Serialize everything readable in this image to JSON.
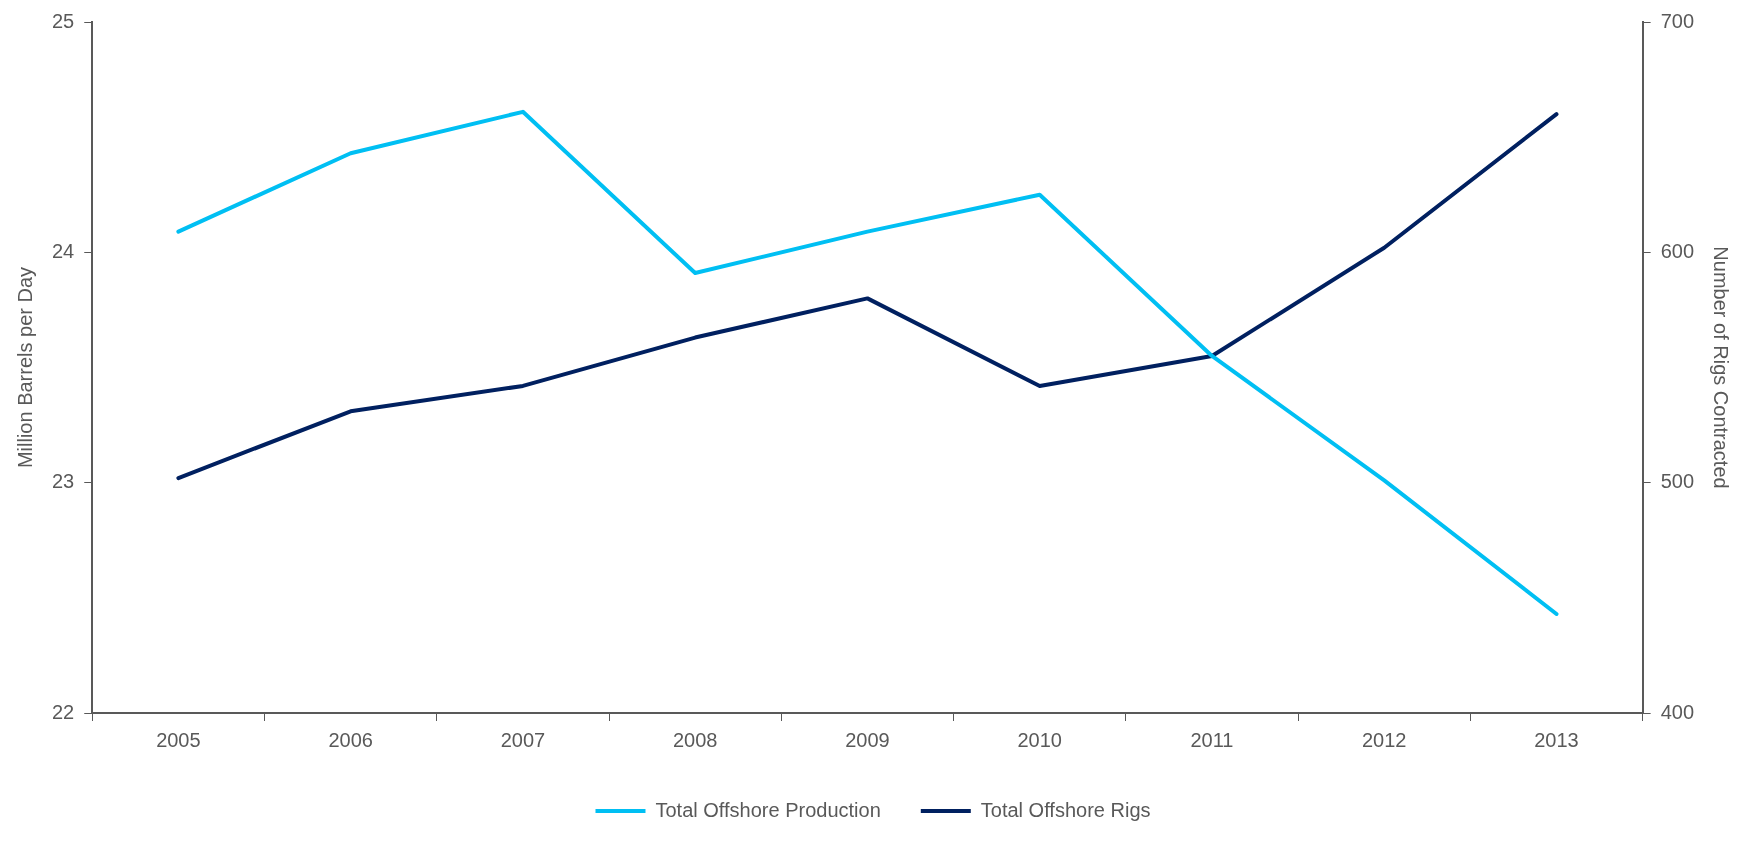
{
  "chart_data": {
    "type": "line",
    "categories": [
      "2005",
      "2006",
      "2007",
      "2008",
      "2009",
      "2010",
      "2011",
      "2012",
      "2013"
    ],
    "series": [
      {
        "name": "Total Offshore Production",
        "color": "#00bff3",
        "values": [
          24.09,
          24.43,
          24.61,
          23.91,
          24.09,
          24.25,
          23.55,
          23.01,
          22.43
        ]
      },
      {
        "name": "Total Offshore Rigs",
        "color": "#002060",
        "axis": "y2",
        "values": [
          502,
          531,
          542,
          563,
          580,
          542,
          555,
          602,
          660
        ]
      }
    ],
    "ylabel": "Million Barrels per Day",
    "y2label": "Number of Rigs Contracted",
    "ylim": [
      22,
      25
    ],
    "yticks": [
      22,
      23,
      24,
      25
    ],
    "y2lim": [
      400,
      700
    ],
    "y2ticks": [
      400,
      500,
      600,
      700
    ],
    "grid": false,
    "legend": "bottom",
    "marker": "none",
    "line_style": "solid"
  }
}
